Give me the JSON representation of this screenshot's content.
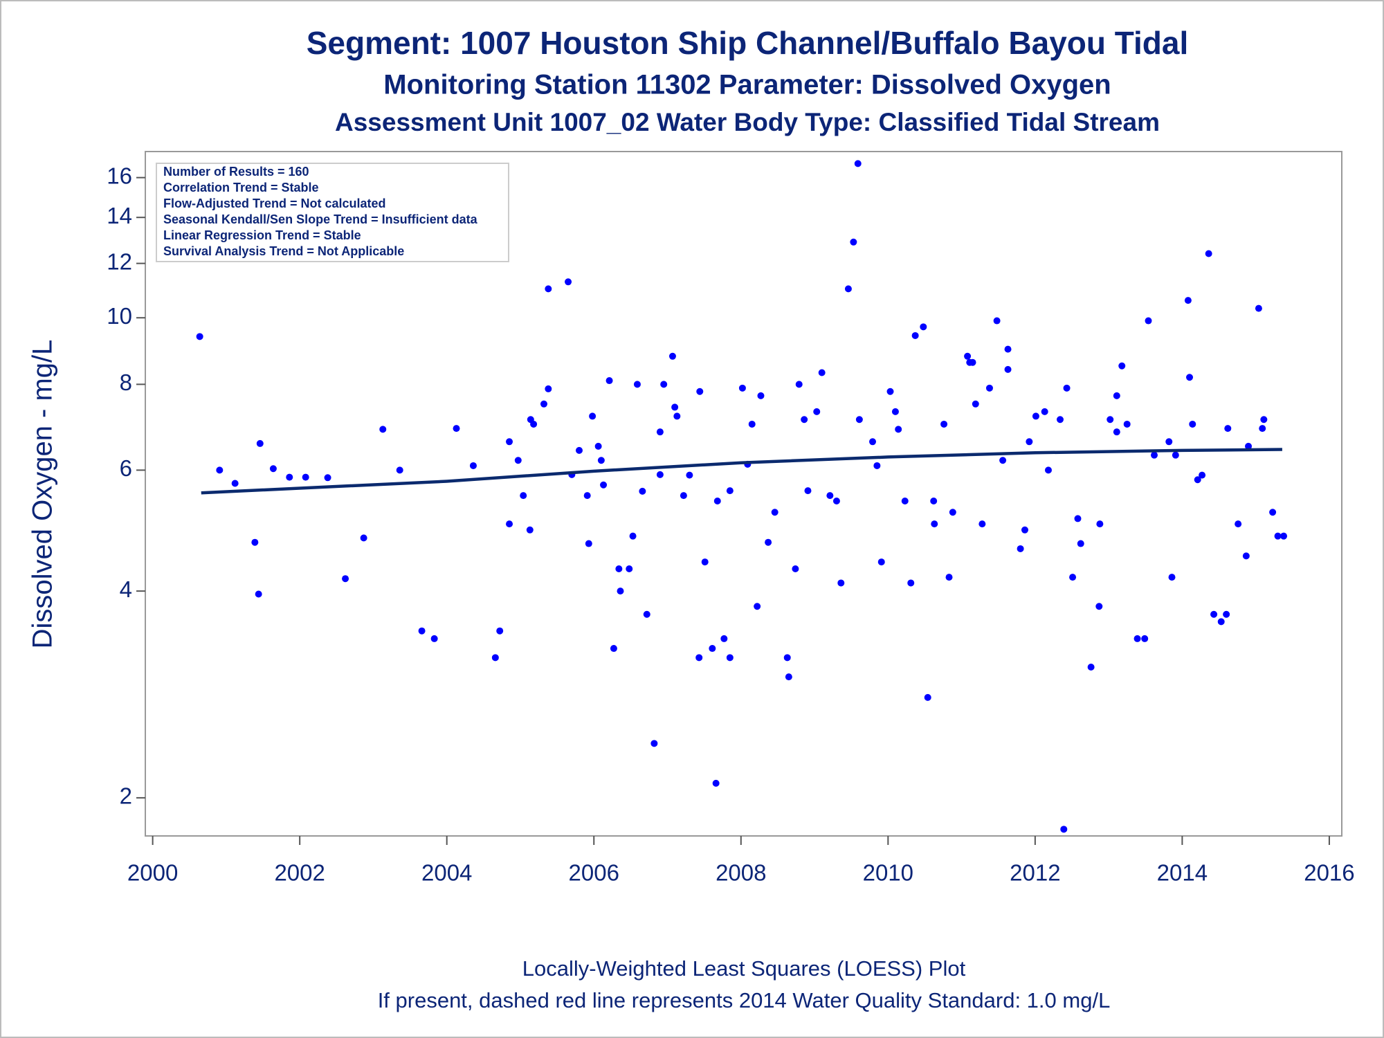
{
  "chart_data": {
    "type": "scatter",
    "title": "Segment: 1007  Houston Ship Channel/Buffalo Bayou Tidal",
    "subtitles": [
      "Monitoring Station 11302 Parameter: Dissolved Oxygen",
      "Assessment Unit 1007_02   Water Body Type: Classified Tidal Stream"
    ],
    "info_box": [
      "Number of Results = 160",
      "Correlation Trend = Stable",
      "Flow-Adjusted Trend = Not calculated",
      "Seasonal Kendall/Sen Slope Trend = Insufficient data",
      "Linear Regression Trend = Stable",
      "Survival Analysis Trend = Not Applicable"
    ],
    "y_label": "Dissolved Oxygen - mg/L",
    "footnotes": [
      "Locally-Weighted Least Squares (LOESS) Plot",
      "If present, dashed red line represents 2014 Water Quality Standard: 1.0 mg/L"
    ],
    "log_y": true,
    "grid": false,
    "xlim": [
      1999.9,
      2016.17
    ],
    "ylim": [
      1.76,
      17.46
    ],
    "xticks": [
      2000,
      2002,
      2004,
      2006,
      2008,
      2010,
      2012,
      2014,
      2016
    ],
    "yticks": [
      2,
      4,
      6,
      8,
      10,
      12,
      14,
      16
    ],
    "series": [
      {
        "type": "scatter",
        "color": "#0000ff",
        "x": [
          2000.64,
          2000.91,
          2001.12,
          2001.39,
          2001.44,
          2001.46,
          2001.64,
          2001.86,
          2002.08,
          2002.38,
          2002.62,
          2002.87,
          2003.13,
          2003.36,
          2003.66,
          2003.83,
          2004.13,
          2004.36,
          2004.66,
          2004.72,
          2004.85,
          2004.85,
          2004.97,
          2005.04,
          2005.13,
          2005.14,
          2005.18,
          2005.32,
          2005.38,
          2005.38,
          2005.65,
          2005.7,
          2005.8,
          2005.91,
          2005.93,
          2005.98,
          2006.06,
          2006.1,
          2006.13,
          2006.21,
          2006.27,
          2006.34,
          2006.36,
          2006.48,
          2006.53,
          2006.59,
          2006.66,
          2006.72,
          2006.82,
          2006.9,
          2006.9,
          2006.95,
          2007.07,
          2007.1,
          2007.13,
          2007.22,
          2007.3,
          2007.43,
          2007.44,
          2007.51,
          2007.61,
          2007.66,
          2007.68,
          2007.77,
          2007.85,
          2007.85,
          2008.02,
          2008.09,
          2008.15,
          2008.22,
          2008.27,
          2008.37,
          2008.46,
          2008.63,
          2008.65,
          2008.74,
          2008.79,
          2008.86,
          2008.91,
          2009.03,
          2009.1,
          2009.21,
          2009.3,
          2009.36,
          2009.46,
          2009.53,
          2009.59,
          2009.61,
          2009.79,
          2009.85,
          2009.91,
          2010.03,
          2010.1,
          2010.14,
          2010.23,
          2010.31,
          2010.37,
          2010.48,
          2010.54,
          2010.62,
          2010.63,
          2010.76,
          2010.83,
          2010.88,
          2011.08,
          2011.11,
          2011.15,
          2011.19,
          2011.28,
          2011.38,
          2011.48,
          2011.56,
          2011.63,
          2011.63,
          2011.8,
          2011.86,
          2011.92,
          2012.01,
          2012.13,
          2012.18,
          2012.34,
          2012.39,
          2012.43,
          2012.51,
          2012.58,
          2012.62,
          2012.76,
          2012.87,
          2012.88,
          2013.02,
          2013.11,
          2013.11,
          2013.18,
          2013.25,
          2013.39,
          2013.49,
          2013.54,
          2013.62,
          2013.82,
          2013.86,
          2013.91,
          2014.08,
          2014.1,
          2014.14,
          2014.21,
          2014.27,
          2014.36,
          2014.43,
          2014.53,
          2014.6,
          2014.62,
          2014.76,
          2014.87,
          2014.9,
          2015.04,
          2015.09,
          2015.11,
          2015.23,
          2015.3,
          2015.38
        ],
        "values": [
          9.39,
          6.0,
          5.74,
          4.71,
          3.96,
          6.56,
          6.03,
          5.86,
          5.86,
          5.85,
          4.17,
          4.78,
          6.88,
          6.0,
          3.5,
          3.41,
          6.9,
          6.09,
          3.2,
          3.5,
          6.6,
          5.01,
          6.2,
          5.51,
          4.91,
          7.11,
          7.0,
          7.49,
          7.88,
          11.02,
          11.28,
          5.91,
          6.41,
          5.51,
          4.69,
          7.19,
          6.5,
          6.2,
          5.71,
          8.1,
          3.3,
          4.31,
          4.0,
          4.31,
          4.81,
          8.0,
          5.59,
          3.7,
          2.4,
          5.91,
          6.82,
          8.0,
          8.79,
          7.41,
          7.19,
          5.51,
          5.9,
          3.2,
          7.81,
          4.41,
          3.3,
          2.1,
          5.41,
          3.41,
          3.2,
          5.6,
          7.9,
          6.12,
          7.0,
          3.8,
          7.7,
          4.71,
          5.21,
          3.2,
          3.0,
          4.31,
          8.0,
          7.11,
          5.6,
          7.3,
          8.32,
          5.51,
          5.41,
          4.11,
          11.02,
          12.89,
          16.77,
          7.11,
          6.6,
          6.09,
          4.41,
          7.81,
          7.3,
          6.88,
          5.41,
          4.11,
          9.42,
          9.7,
          2.8,
          5.41,
          5.01,
          7.0,
          4.19,
          5.21,
          8.79,
          8.61,
          8.61,
          7.49,
          5.01,
          7.9,
          9.9,
          6.2,
          9.0,
          8.41,
          4.61,
          4.91,
          6.6,
          7.19,
          7.3,
          6.0,
          7.11,
          1.8,
          7.9,
          4.19,
          5.1,
          4.69,
          3.1,
          3.8,
          5.01,
          7.11,
          7.7,
          6.82,
          8.51,
          7.0,
          3.41,
          3.41,
          9.9,
          6.31,
          6.6,
          4.19,
          6.31,
          10.6,
          8.19,
          7.0,
          5.81,
          5.9,
          12.4,
          3.7,
          3.61,
          3.7,
          6.9,
          5.01,
          4.5,
          6.5,
          10.32,
          6.9,
          7.11,
          5.21,
          4.81,
          4.81
        ]
      },
      {
        "type": "line",
        "color": "#0b2a6e",
        "x": [
          2000.66,
          2004.0,
          2006.0,
          2008.0,
          2010.0,
          2012.0,
          2014.0,
          2015.36
        ],
        "values": [
          5.56,
          5.78,
          5.98,
          6.15,
          6.27,
          6.36,
          6.41,
          6.43
        ]
      }
    ]
  }
}
